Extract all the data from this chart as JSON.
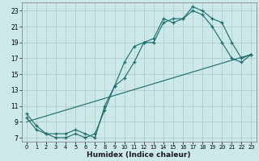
{
  "xlabel": "Humidex (Indice chaleur)",
  "bg_color": "#cce8e8",
  "grid_color": "#b0cccc",
  "line_color": "#1a6b6b",
  "xlim": [
    -0.5,
    23.5
  ],
  "ylim": [
    6.5,
    24
  ],
  "xticks": [
    0,
    1,
    2,
    3,
    4,
    5,
    6,
    7,
    8,
    9,
    10,
    11,
    12,
    13,
    14,
    15,
    16,
    17,
    18,
    19,
    20,
    21,
    22,
    23
  ],
  "yticks": [
    7,
    9,
    11,
    13,
    15,
    17,
    19,
    21,
    23
  ],
  "line1_x": [
    0,
    1,
    2,
    3,
    4,
    5,
    6,
    7,
    8,
    9,
    10,
    11,
    12,
    13,
    14,
    15,
    16,
    17,
    18,
    19,
    20,
    21,
    22,
    23
  ],
  "line1_y": [
    10,
    8.5,
    7.5,
    7.5,
    7.5,
    8,
    7.5,
    7,
    11,
    13.5,
    16.5,
    18.5,
    19,
    19.5,
    22,
    21.5,
    22,
    23.5,
    23,
    22,
    21.5,
    19,
    17,
    17.5
  ],
  "line2_x": [
    0,
    1,
    2,
    3,
    4,
    5,
    6,
    7,
    8,
    9,
    10,
    11,
    12,
    13,
    14,
    15,
    16,
    17,
    18,
    19,
    20,
    21,
    22,
    23
  ],
  "line2_y": [
    9.5,
    8,
    7.5,
    7,
    7,
    7.5,
    7,
    7.5,
    10.5,
    13.5,
    14.5,
    16.5,
    19,
    19,
    21.5,
    22,
    22,
    23,
    22.5,
    21,
    19,
    17,
    16.5,
    17.5
  ],
  "line3_x": [
    0,
    23
  ],
  "line3_y": [
    9,
    17.5
  ]
}
